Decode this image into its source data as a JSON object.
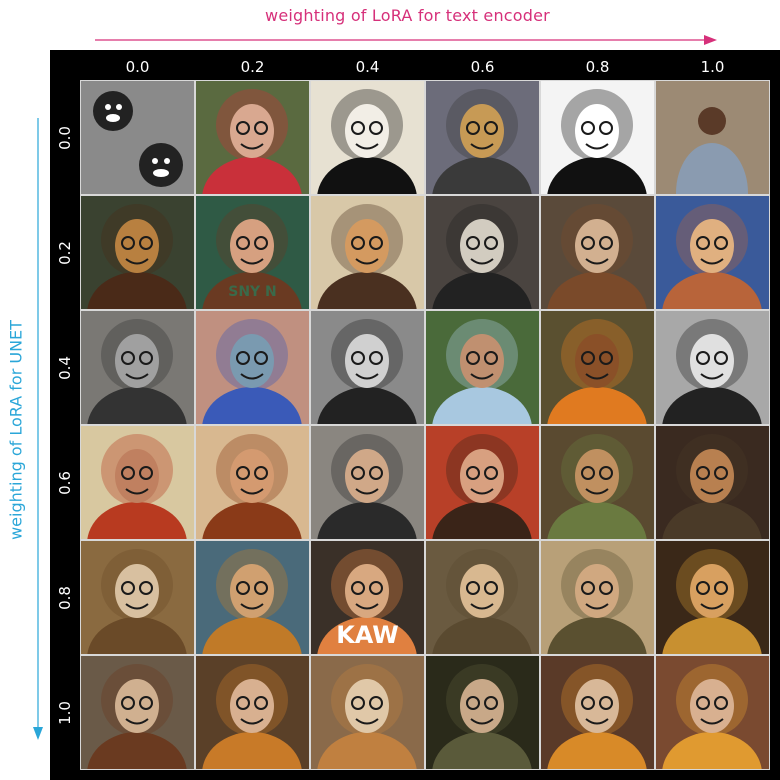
{
  "figure": {
    "x_axis_title": "weighting of LoRA for text encoder",
    "y_axis_title": "weighting of LoRA for UNET",
    "x_values": [
      "0.0",
      "0.2",
      "0.4",
      "0.6",
      "0.8",
      "1.0"
    ],
    "y_values": [
      "0.0",
      "0.2",
      "0.4",
      "0.6",
      "0.8",
      "1.0"
    ],
    "colors": {
      "x_title": "#d6307a",
      "y_title": "#2aa6d8",
      "panel": "#000000"
    }
  },
  "cells": [
    [
      {
        "desc": "grey-noise-two-faces",
        "bg": "#8a8a8a",
        "face": "#222222",
        "accent": "#ffffff",
        "text": ""
      },
      {
        "desc": "cartoon-mask-swirls",
        "bg": "#5a6a40",
        "face": "#d9a890",
        "accent": "#c9303a",
        "text": ""
      },
      {
        "desc": "sketch-grinning-face",
        "bg": "#e7e1d2",
        "face": "#f2eee6",
        "accent": "#111111",
        "text": ""
      },
      {
        "desc": "cartoon-lion-face",
        "bg": "#6c6c7a",
        "face": "#c79a55",
        "accent": "#3a3a3a",
        "text": ""
      },
      {
        "desc": "woodcut-mask",
        "bg": "#f4f4f4",
        "face": "#ffffff",
        "accent": "#111111",
        "text": ""
      },
      {
        "desc": "photo-man-standing",
        "bg": "#9c8a74",
        "face": "#5a3a28",
        "accent": "#8a9bb0",
        "text": ""
      }
    ],
    [
      {
        "desc": "dog-painting",
        "bg": "#3a4230",
        "face": "#b88040",
        "accent": "#4a2a18",
        "text": ""
      },
      {
        "desc": "portrait-poster",
        "bg": "#2f5a45",
        "face": "#d6a080",
        "accent": "#6a3a22",
        "text": "SNY N"
      },
      {
        "desc": "cartoon-faces",
        "bg": "#d8c8a8",
        "face": "#d49a60",
        "accent": "#4a3020",
        "text": ""
      },
      {
        "desc": "bald-grin-oval",
        "bg": "#4a4440",
        "face": "#d2ccc0",
        "accent": "#222222",
        "text": ""
      },
      {
        "desc": "man-brown-coat",
        "bg": "#5a4a3a",
        "face": "#d2b090",
        "accent": "#7a4a2a",
        "text": ""
      },
      {
        "desc": "cartoon-boy",
        "bg": "#3a5a9a",
        "face": "#e0b080",
        "accent": "#b8643a",
        "text": ""
      }
    ],
    [
      {
        "desc": "grey-creature-eyepatch",
        "bg": "#7a7874",
        "face": "#a0a0a0",
        "accent": "#333333",
        "text": ""
      },
      {
        "desc": "creature-blue-mask",
        "bg": "#c09080",
        "face": "#7a9ab0",
        "accent": "#3a5ab8",
        "text": ""
      },
      {
        "desc": "bw-man-hat",
        "bg": "#8a8a8a",
        "face": "#d0d0d0",
        "accent": "#222222",
        "text": ""
      },
      {
        "desc": "photo-man-shirt",
        "bg": "#4a6a3a",
        "face": "#c09070",
        "accent": "#a8c8e0",
        "text": ""
      },
      {
        "desc": "man-orange-jacket",
        "bg": "#5a5030",
        "face": "#8a5028",
        "accent": "#e07a20",
        "text": ""
      },
      {
        "desc": "bw-man-glasses",
        "bg": "#a8a8a8",
        "face": "#e0e0e0",
        "accent": "#222222",
        "text": ""
      }
    ],
    [
      {
        "desc": "man-red-jacket",
        "bg": "#d8c8a0",
        "face": "#c08060",
        "accent": "#b83a20",
        "text": ""
      },
      {
        "desc": "woman-curly-hair",
        "bg": "#d8b890",
        "face": "#d49a70",
        "accent": "#8a3a18",
        "text": ""
      },
      {
        "desc": "man-dark-suit",
        "bg": "#8a8680",
        "face": "#d0a888",
        "accent": "#2a2a2a",
        "text": ""
      },
      {
        "desc": "man-red-halo",
        "bg": "#b84028",
        "face": "#d8a080",
        "accent": "#3a2418",
        "text": ""
      },
      {
        "desc": "man-green-jacket",
        "bg": "#5a4a30",
        "face": "#c09060",
        "accent": "#6a7a40",
        "text": ""
      },
      {
        "desc": "man-smiling-dark",
        "bg": "#3a2a20",
        "face": "#b88050",
        "accent": "#4a3a28",
        "text": ""
      }
    ],
    [
      {
        "desc": "man-white-halo",
        "bg": "#8a6a40",
        "face": "#d8c0a0",
        "accent": "#6a4a28",
        "text": ""
      },
      {
        "desc": "man-blue-halo",
        "bg": "#4a6a7a",
        "face": "#d0a070",
        "accent": "#c07a28",
        "text": ""
      },
      {
        "desc": "man-orange-halo",
        "bg": "#3a3028",
        "face": "#d8a880",
        "accent": "#e08040",
        "text": "KAW"
      },
      {
        "desc": "man-light-halo",
        "bg": "#6a5a40",
        "face": "#d8b890",
        "accent": "#5a4a30",
        "text": ""
      },
      {
        "desc": "man-cream-bg",
        "bg": "#b8a078",
        "face": "#d0a880",
        "accent": "#5a5030",
        "text": ""
      },
      {
        "desc": "man-gold-halo",
        "bg": "#3a2818",
        "face": "#d8a060",
        "accent": "#c89030",
        "text": ""
      }
    ],
    [
      {
        "desc": "man-standing-halo",
        "bg": "#6a5a48",
        "face": "#d0b090",
        "accent": "#6a3a20",
        "text": ""
      },
      {
        "desc": "man-orange-coat",
        "bg": "#5a4028",
        "face": "#d8b090",
        "accent": "#c87a28",
        "text": ""
      },
      {
        "desc": "man-halo-light",
        "bg": "#8a6a4a",
        "face": "#e0c8a8",
        "accent": "#c08040",
        "text": ""
      },
      {
        "desc": "man-dark-bg",
        "bg": "#2a2a1a",
        "face": "#c8a888",
        "accent": "#5a5a3a",
        "text": ""
      },
      {
        "desc": "man-brown-halo",
        "bg": "#5a3a28",
        "face": "#d8b898",
        "accent": "#d88a28",
        "text": ""
      },
      {
        "desc": "man-rust-bg",
        "bg": "#7a4a30",
        "face": "#d8b090",
        "accent": "#e09a30",
        "text": ""
      }
    ]
  ]
}
